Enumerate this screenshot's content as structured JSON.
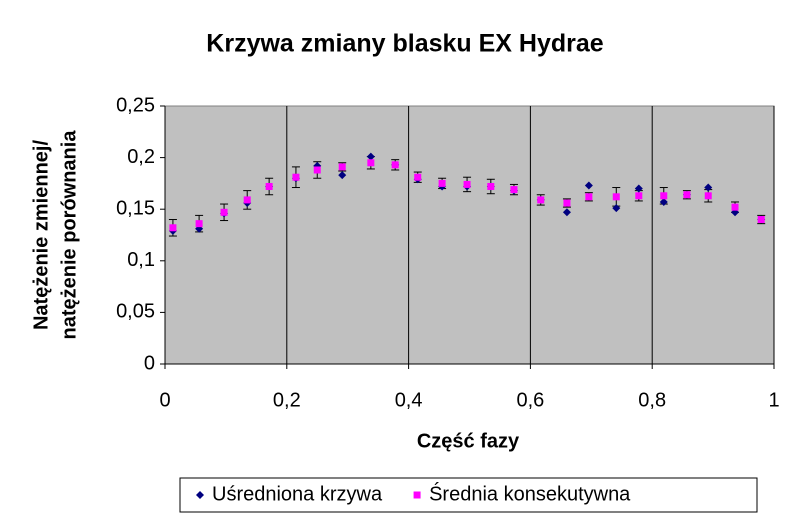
{
  "chart_data": {
    "type": "scatter",
    "title": "Krzywa zmiany blasku EX Hydrae",
    "xlabel": "Część fazy",
    "ylabel": [
      "Natężenie zmiennej/",
      "natężenie porównania"
    ],
    "xlim": [
      0,
      1
    ],
    "xticks": [
      0,
      {
        "value": 0.2,
        "label": "0,2"
      },
      {
        "value": 0.4,
        "label": "0,4"
      },
      {
        "value": 0.6,
        "label": "0,6"
      },
      {
        "value": 0.8,
        "label": "0,8"
      },
      1
    ],
    "ylim": [
      0,
      0.25
    ],
    "yticks": [
      0,
      {
        "value": 0.05,
        "label": "0,05"
      },
      {
        "value": 0.1,
        "label": "0,1"
      },
      {
        "value": 0.15,
        "label": "0,15"
      },
      {
        "value": 0.2,
        "label": "0,2"
      },
      {
        "value": 0.25,
        "label": "0,25"
      }
    ],
    "xgrid": true,
    "ygrid": false,
    "legend": "bottom",
    "x": [
      0.013,
      0.056,
      0.097,
      0.135,
      0.171,
      0.215,
      0.25,
      0.291,
      0.338,
      0.378,
      0.415,
      0.455,
      0.496,
      0.535,
      0.573,
      0.617,
      0.66,
      0.696,
      0.741,
      0.778,
      0.819,
      0.857,
      0.892,
      0.936,
      0.979
    ],
    "series": [
      {
        "name": "Uśredniona krzywa",
        "color": "#000080",
        "marker": "diamond",
        "values": [
          0.129,
          0.131,
          0.146,
          0.156,
          0.172,
          0.18,
          0.192,
          0.183,
          0.201,
          0.193,
          0.179,
          0.172,
          0.172,
          0.172,
          0.168,
          0.159,
          0.147,
          0.173,
          0.151,
          0.17,
          0.157,
          0.164,
          0.171,
          0.147,
          0.14
        ]
      },
      {
        "name": "Średnia konsekutywna",
        "color": "#ff00ff",
        "marker": "square",
        "values": [
          0.132,
          0.136,
          0.147,
          0.159,
          0.172,
          0.181,
          0.188,
          0.191,
          0.195,
          0.193,
          0.181,
          0.175,
          0.174,
          0.172,
          0.169,
          0.159,
          0.156,
          0.162,
          0.162,
          0.163,
          0.163,
          0.164,
          0.163,
          0.152,
          0.14
        ],
        "errors": [
          0.008,
          0.008,
          0.008,
          0.009,
          0.008,
          0.01,
          0.008,
          0.004,
          0.006,
          0.005,
          0.005,
          0.005,
          0.007,
          0.007,
          0.005,
          0.005,
          0.004,
          0.004,
          0.009,
          0.005,
          0.008,
          0.004,
          0.006,
          0.005,
          0.004
        ]
      }
    ]
  }
}
